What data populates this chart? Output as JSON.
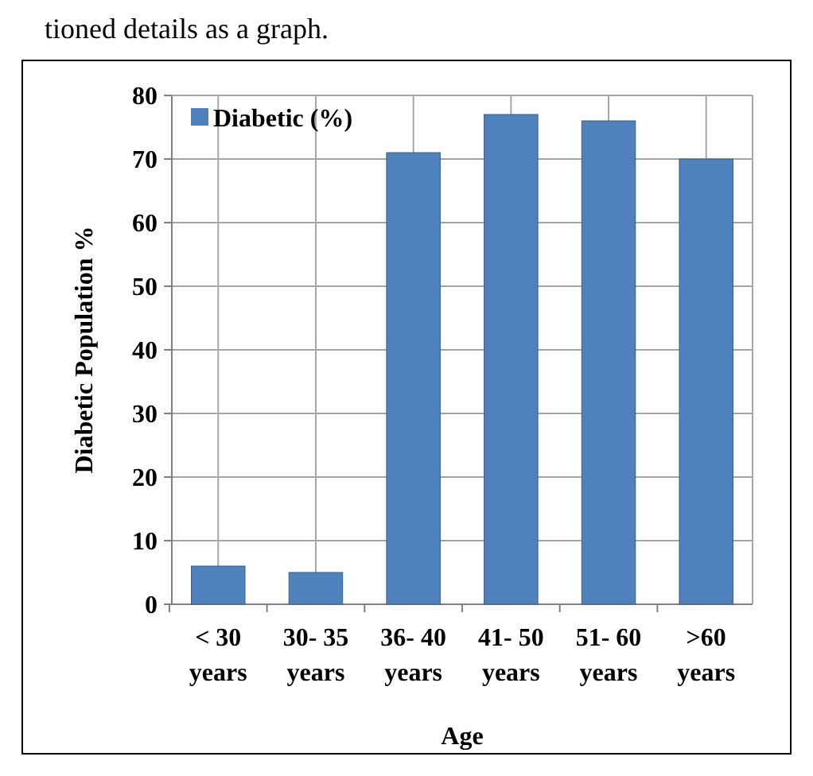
{
  "chart_data": {
    "type": "bar",
    "xlabel": "Age",
    "ylabel": "Diabetic Population %",
    "annotations": [
      "tioned details as a graph."
    ],
    "categories": [
      "< 30 years",
      "30- 35 years",
      "36- 40 years",
      "41- 50 years",
      "51- 60 years",
      ">60 years"
    ],
    "series": [
      {
        "name": "Diabetic (%)",
        "color": "#4f81bd",
        "values": [
          6,
          5,
          71,
          77,
          76,
          70
        ]
      }
    ],
    "ylim": [
      0,
      80
    ],
    "yticks": [
      0,
      10,
      20,
      30,
      40,
      50,
      60,
      70,
      80
    ],
    "grid": true,
    "legend": "top left"
  }
}
